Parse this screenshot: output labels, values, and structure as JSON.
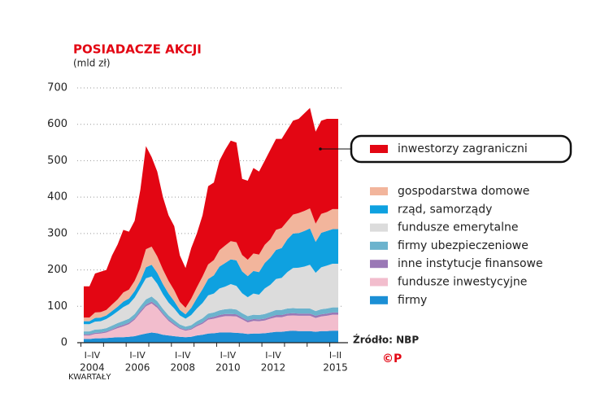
{
  "chart_data": {
    "type": "stacked-area",
    "title": "POSIADACZE AKCJI",
    "subtitle": "(mld zł)",
    "source": "Źródło: NBP",
    "copyright": "©P",
    "x_note": "KWARTAŁY",
    "categories": [
      null,
      null,
      null,
      null,
      null,
      null,
      null,
      null,
      null,
      null,
      null,
      null,
      null,
      null,
      null,
      null,
      null,
      null,
      null,
      null,
      null,
      null,
      null,
      null,
      null,
      null,
      null,
      null,
      null,
      null,
      null,
      null,
      null,
      null,
      null,
      null,
      null,
      null,
      null,
      null,
      null,
      null,
      null,
      null,
      null,
      null
    ],
    "year_labels": [
      {
        "period": "I–IV",
        "year": "2004",
        "from": 0,
        "to": 3
      },
      {
        "period": "I–IV",
        "year": "2006",
        "from": 8,
        "to": 11
      },
      {
        "period": "I–IV",
        "year": "2008",
        "from": 16,
        "to": 19
      },
      {
        "period": "I–IV",
        "year": "2010",
        "from": 24,
        "to": 27
      },
      {
        "period": "I–IV",
        "year": "2012",
        "from": 32,
        "to": 35
      },
      {
        "period": "I–II",
        "year": "2015",
        "from": 44,
        "to": 45
      }
    ],
    "ylim": [
      0,
      700
    ],
    "yticks": [
      0,
      100,
      200,
      300,
      400,
      500,
      600,
      700
    ],
    "grid": true,
    "series": [
      {
        "name": "firmy",
        "color": "#1b8fd5",
        "values": [
          10,
          10,
          12,
          12,
          13,
          14,
          15,
          15,
          16,
          18,
          22,
          25,
          28,
          26,
          22,
          20,
          18,
          16,
          15,
          16,
          20,
          22,
          25,
          26,
          28,
          28,
          28,
          27,
          26,
          24,
          25,
          25,
          26,
          28,
          30,
          30,
          32,
          33,
          32,
          32,
          32,
          30,
          32,
          32,
          33,
          33
        ]
      },
      {
        "name": "fundusze inwestycyjne",
        "color": "#f2bdcd",
        "values": [
          10,
          10,
          12,
          13,
          15,
          20,
          25,
          30,
          35,
          45,
          60,
          75,
          80,
          70,
          55,
          40,
          30,
          22,
          18,
          20,
          25,
          30,
          38,
          40,
          42,
          45,
          45,
          45,
          38,
          32,
          35,
          34,
          35,
          38,
          40,
          40,
          42,
          42,
          42,
          42,
          42,
          38,
          40,
          42,
          44,
          44
        ]
      },
      {
        "name": "inne instytucje finansowe",
        "color": "#9a78b6",
        "values": [
          3,
          3,
          3,
          3,
          3,
          3,
          4,
          4,
          4,
          4,
          5,
          5,
          5,
          5,
          4,
          4,
          4,
          3,
          3,
          3,
          4,
          4,
          5,
          5,
          6,
          6,
          6,
          6,
          5,
          5,
          5,
          5,
          5,
          5,
          6,
          6,
          6,
          6,
          6,
          6,
          6,
          6,
          6,
          6,
          6,
          6
        ]
      },
      {
        "name": "firmy ubezpieczeniowe",
        "color": "#6cb3cd",
        "values": [
          8,
          8,
          9,
          9,
          9,
          10,
          10,
          11,
          11,
          12,
          13,
          14,
          14,
          13,
          12,
          11,
          10,
          9,
          8,
          9,
          10,
          11,
          12,
          12,
          13,
          13,
          14,
          13,
          12,
          12,
          12,
          12,
          13,
          13,
          14,
          14,
          14,
          14,
          14,
          14,
          14,
          13,
          14,
          14,
          14,
          14
        ]
      },
      {
        "name": "fundusze emerytalne",
        "color": "#dcdcdc",
        "values": [
          20,
          20,
          22,
          22,
          25,
          28,
          32,
          38,
          40,
          45,
          50,
          58,
          55,
          48,
          40,
          35,
          32,
          25,
          22,
          28,
          35,
          42,
          50,
          52,
          60,
          62,
          68,
          65,
          55,
          52,
          58,
          56,
          70,
          75,
          85,
          88,
          100,
          110,
          112,
          115,
          120,
          105,
          115,
          118,
          120,
          120
        ]
      },
      {
        "name": "rząd, samorządy",
        "color": "#0ea1e0",
        "values": [
          8,
          8,
          10,
          10,
          10,
          12,
          13,
          15,
          15,
          18,
          20,
          30,
          32,
          30,
          28,
          25,
          20,
          15,
          12,
          20,
          28,
          38,
          45,
          50,
          60,
          65,
          68,
          70,
          60,
          58,
          62,
          62,
          70,
          75,
          80,
          82,
          90,
          95,
          95,
          98,
          100,
          85,
          95,
          95,
          95,
          95
        ]
      },
      {
        "name": "gospodarstwa domowe",
        "color": "#f2b59c",
        "values": [
          10,
          10,
          15,
          15,
          15,
          18,
          20,
          25,
          25,
          28,
          35,
          50,
          50,
          45,
          40,
          35,
          30,
          22,
          18,
          25,
          30,
          35,
          40,
          42,
          45,
          48,
          50,
          50,
          45,
          45,
          48,
          48,
          50,
          50,
          55,
          55,
          50,
          52,
          55,
          55,
          55,
          50,
          52,
          52,
          55,
          55
        ]
      },
      {
        "name": "inwestorzy zagraniczni",
        "color": "#e30613",
        "values": [
          86,
          86,
          107,
          111,
          110,
          135,
          151,
          172,
          159,
          165,
          215,
          283,
          246,
          233,
          199,
          180,
          176,
          128,
          109,
          139,
          148,
          168,
          215,
          213,
          246,
          263,
          276,
          274,
          209,
          217,
          235,
          228,
          231,
          246,
          250,
          245,
          251,
          258,
          259,
          268,
          276,
          253,
          256,
          256,
          248,
          248
        ]
      }
    ]
  }
}
